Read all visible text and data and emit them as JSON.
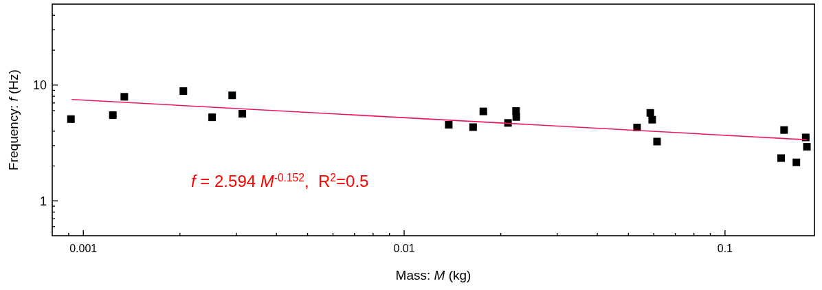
{
  "chart_data": {
    "type": "scatter",
    "xlabel": "Mass: M (kg)",
    "ylabel": "Frequency: f (Hz)",
    "log": "xy",
    "grid": false,
    "marker": "square",
    "xlim": [
      0.0008,
      0.19
    ],
    "ylim": [
      0.5,
      50
    ],
    "xticks": [
      {
        "value": 0.0009,
        "label": null
      },
      0.001,
      {
        "value": 0.002,
        "label": null
      },
      {
        "value": 0.003,
        "label": null
      },
      {
        "value": 0.004,
        "label": null
      },
      {
        "value": 0.005,
        "label": null
      },
      {
        "value": 0.006,
        "label": null
      },
      {
        "value": 0.007,
        "label": null
      },
      {
        "value": 0.008,
        "label": null
      },
      {
        "value": 0.009,
        "label": null
      },
      0.01,
      {
        "value": 0.02,
        "label": null
      },
      {
        "value": 0.03,
        "label": null
      },
      {
        "value": 0.04,
        "label": null
      },
      {
        "value": 0.05,
        "label": null
      },
      {
        "value": 0.06,
        "label": null
      },
      {
        "value": 0.07,
        "label": null
      },
      {
        "value": 0.08,
        "label": null
      },
      {
        "value": 0.09,
        "label": null
      },
      0.1
    ],
    "yticks": [
      {
        "value": 0.6,
        "label": null
      },
      {
        "value": 0.7,
        "label": null
      },
      {
        "value": 0.8,
        "label": null
      },
      {
        "value": 0.9,
        "label": null
      },
      1,
      {
        "value": 2,
        "label": null
      },
      {
        "value": 3,
        "label": null
      },
      {
        "value": 4,
        "label": null
      },
      {
        "value": 6,
        "label": null
      },
      {
        "value": 7,
        "label": null
      },
      {
        "value": 8,
        "label": null
      },
      {
        "value": 9,
        "label": null
      },
      10,
      {
        "value": 20,
        "label": null
      },
      {
        "value": 30,
        "label": null
      },
      {
        "value": 40,
        "label": null
      }
    ],
    "series": [
      {
        "color": "#000000",
        "x": [
          0.000915,
          0.001236,
          0.001342,
          0.00205,
          0.00252,
          0.00291,
          0.00313,
          0.01377,
          0.0164,
          0.01765,
          0.02107,
          0.02232,
          0.02236,
          0.0532,
          0.0585,
          0.0593,
          0.0614,
          0.1528,
          0.1785,
          0.18,
          0.1496,
          0.1669
        ],
        "values": [
          5.08,
          5.5,
          7.92,
          8.87,
          5.27,
          8.15,
          5.65,
          4.54,
          4.33,
          5.92,
          4.71,
          5.97,
          5.3,
          4.3,
          5.75,
          5.02,
          3.25,
          4.09,
          3.53,
          2.93,
          2.34,
          2.15
        ]
      },
      {
        "type": "line",
        "marker": "none",
        "color": "#e8175d",
        "x": [
          0.00092,
          0.18
        ],
        "values": [
          7.51,
          3.37
        ]
      }
    ],
    "annotations": [
      "f = 2.594 M$^{-0.152}$,  R$^{2}$=0.5"
    ]
  }
}
